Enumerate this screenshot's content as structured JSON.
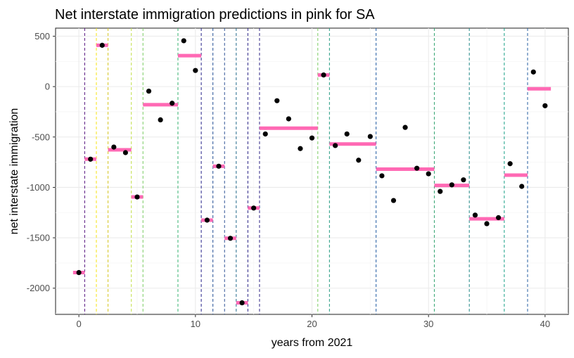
{
  "chart_data": {
    "type": "scatter",
    "title": "Net interstate immigration predictions in pink for SA",
    "xlabel": "years from 2021",
    "ylabel": "net interstate immigration",
    "xlim": [
      -2,
      42
    ],
    "ylim": [
      -2260,
      580
    ],
    "x_ticks": [
      0,
      10,
      20,
      30,
      40
    ],
    "y_ticks": [
      500,
      0,
      -500,
      -1000,
      -1500,
      -2000
    ],
    "x_tick_labels": [
      "0",
      "10",
      "20",
      "30",
      "40"
    ],
    "y_tick_labels": [
      "500",
      "0",
      "-500",
      "-1000",
      "-1500",
      "-2000"
    ],
    "grid": true,
    "colors": {
      "prediction": "#ff69b4",
      "observed": "#000000",
      "panel_border": "#333333",
      "grid_major": "#ebebeb",
      "grid_minor": "#f5f5f5"
    },
    "observed_points": [
      {
        "x": 0,
        "y": -1845
      },
      {
        "x": 1,
        "y": -720
      },
      {
        "x": 2,
        "y": 410
      },
      {
        "x": 3,
        "y": -600
      },
      {
        "x": 4,
        "y": -655
      },
      {
        "x": 5,
        "y": -1095
      },
      {
        "x": 6,
        "y": -45
      },
      {
        "x": 7,
        "y": -330
      },
      {
        "x": 8,
        "y": -165
      },
      {
        "x": 9,
        "y": 455
      },
      {
        "x": 10,
        "y": 160
      },
      {
        "x": 11,
        "y": -1325
      },
      {
        "x": 12,
        "y": -790
      },
      {
        "x": 13,
        "y": -1505
      },
      {
        "x": 14,
        "y": -2145
      },
      {
        "x": 15,
        "y": -1205
      },
      {
        "x": 16,
        "y": -470
      },
      {
        "x": 17,
        "y": -140
      },
      {
        "x": 18,
        "y": -320
      },
      {
        "x": 19,
        "y": -615
      },
      {
        "x": 20,
        "y": -510
      },
      {
        "x": 21,
        "y": 115
      },
      {
        "x": 22,
        "y": -585
      },
      {
        "x": 23,
        "y": -470
      },
      {
        "x": 24,
        "y": -730
      },
      {
        "x": 25,
        "y": -495
      },
      {
        "x": 26,
        "y": -885
      },
      {
        "x": 27,
        "y": -1130
      },
      {
        "x": 28,
        "y": -405
      },
      {
        "x": 29,
        "y": -810
      },
      {
        "x": 30,
        "y": -865
      },
      {
        "x": 31,
        "y": -1040
      },
      {
        "x": 32,
        "y": -975
      },
      {
        "x": 33,
        "y": -925
      },
      {
        "x": 34,
        "y": -1275
      },
      {
        "x": 35,
        "y": -1360
      },
      {
        "x": 36,
        "y": -1300
      },
      {
        "x": 37,
        "y": -765
      },
      {
        "x": 38,
        "y": -990
      },
      {
        "x": 39,
        "y": 145
      },
      {
        "x": 40,
        "y": -190
      }
    ],
    "prediction_segments": [
      {
        "x_start": -0.5,
        "x_end": 0.5,
        "y": -1845
      },
      {
        "x_start": 0.5,
        "x_end": 1.5,
        "y": -720
      },
      {
        "x_start": 1.5,
        "x_end": 2.5,
        "y": 410
      },
      {
        "x_start": 2.5,
        "x_end": 4.5,
        "y": -627
      },
      {
        "x_start": 4.5,
        "x_end": 5.5,
        "y": -1095
      },
      {
        "x_start": 5.5,
        "x_end": 8.5,
        "y": -180
      },
      {
        "x_start": 8.5,
        "x_end": 10.5,
        "y": 307
      },
      {
        "x_start": 10.5,
        "x_end": 11.5,
        "y": -1325
      },
      {
        "x_start": 11.5,
        "x_end": 12.5,
        "y": -790
      },
      {
        "x_start": 12.5,
        "x_end": 13.5,
        "y": -1505
      },
      {
        "x_start": 13.5,
        "x_end": 14.5,
        "y": -2145
      },
      {
        "x_start": 14.5,
        "x_end": 15.5,
        "y": -1205
      },
      {
        "x_start": 15.5,
        "x_end": 20.5,
        "y": -413
      },
      {
        "x_start": 20.5,
        "x_end": 21.5,
        "y": 115
      },
      {
        "x_start": 21.5,
        "x_end": 25.5,
        "y": -570
      },
      {
        "x_start": 25.5,
        "x_end": 30.5,
        "y": -819
      },
      {
        "x_start": 30.5,
        "x_end": 33.5,
        "y": -980
      },
      {
        "x_start": 33.5,
        "x_end": 36.5,
        "y": -1312
      },
      {
        "x_start": 36.5,
        "x_end": 38.5,
        "y": -878
      },
      {
        "x_start": 38.5,
        "x_end": 40.5,
        "y": -22
      }
    ],
    "breakpoints": [
      {
        "x": 0.5,
        "color": "#5e1e86"
      },
      {
        "x": 1.5,
        "color": "#f6e51c"
      },
      {
        "x": 2.5,
        "color": "#d7c92a"
      },
      {
        "x": 4.5,
        "color": "#c5e24e"
      },
      {
        "x": 5.5,
        "color": "#7fce68"
      },
      {
        "x": 8.5,
        "color": "#3fb676"
      },
      {
        "x": 10.5,
        "color": "#2f2c8f"
      },
      {
        "x": 11.5,
        "color": "#2c5699"
      },
      {
        "x": 12.5,
        "color": "#395a9a"
      },
      {
        "x": 13.5,
        "color": "#2d7191"
      },
      {
        "x": 14.5,
        "color": "#312b8a"
      },
      {
        "x": 15.5,
        "color": "#3a2f8b"
      },
      {
        "x": 20.5,
        "color": "#7fce68"
      },
      {
        "x": 21.5,
        "color": "#2d9f86"
      },
      {
        "x": 25.5,
        "color": "#2a61a6"
      },
      {
        "x": 30.5,
        "color": "#3aa877"
      },
      {
        "x": 33.5,
        "color": "#2b8d8c"
      },
      {
        "x": 36.5,
        "color": "#1fa38a"
      },
      {
        "x": 38.5,
        "color": "#2f66a5"
      }
    ]
  }
}
